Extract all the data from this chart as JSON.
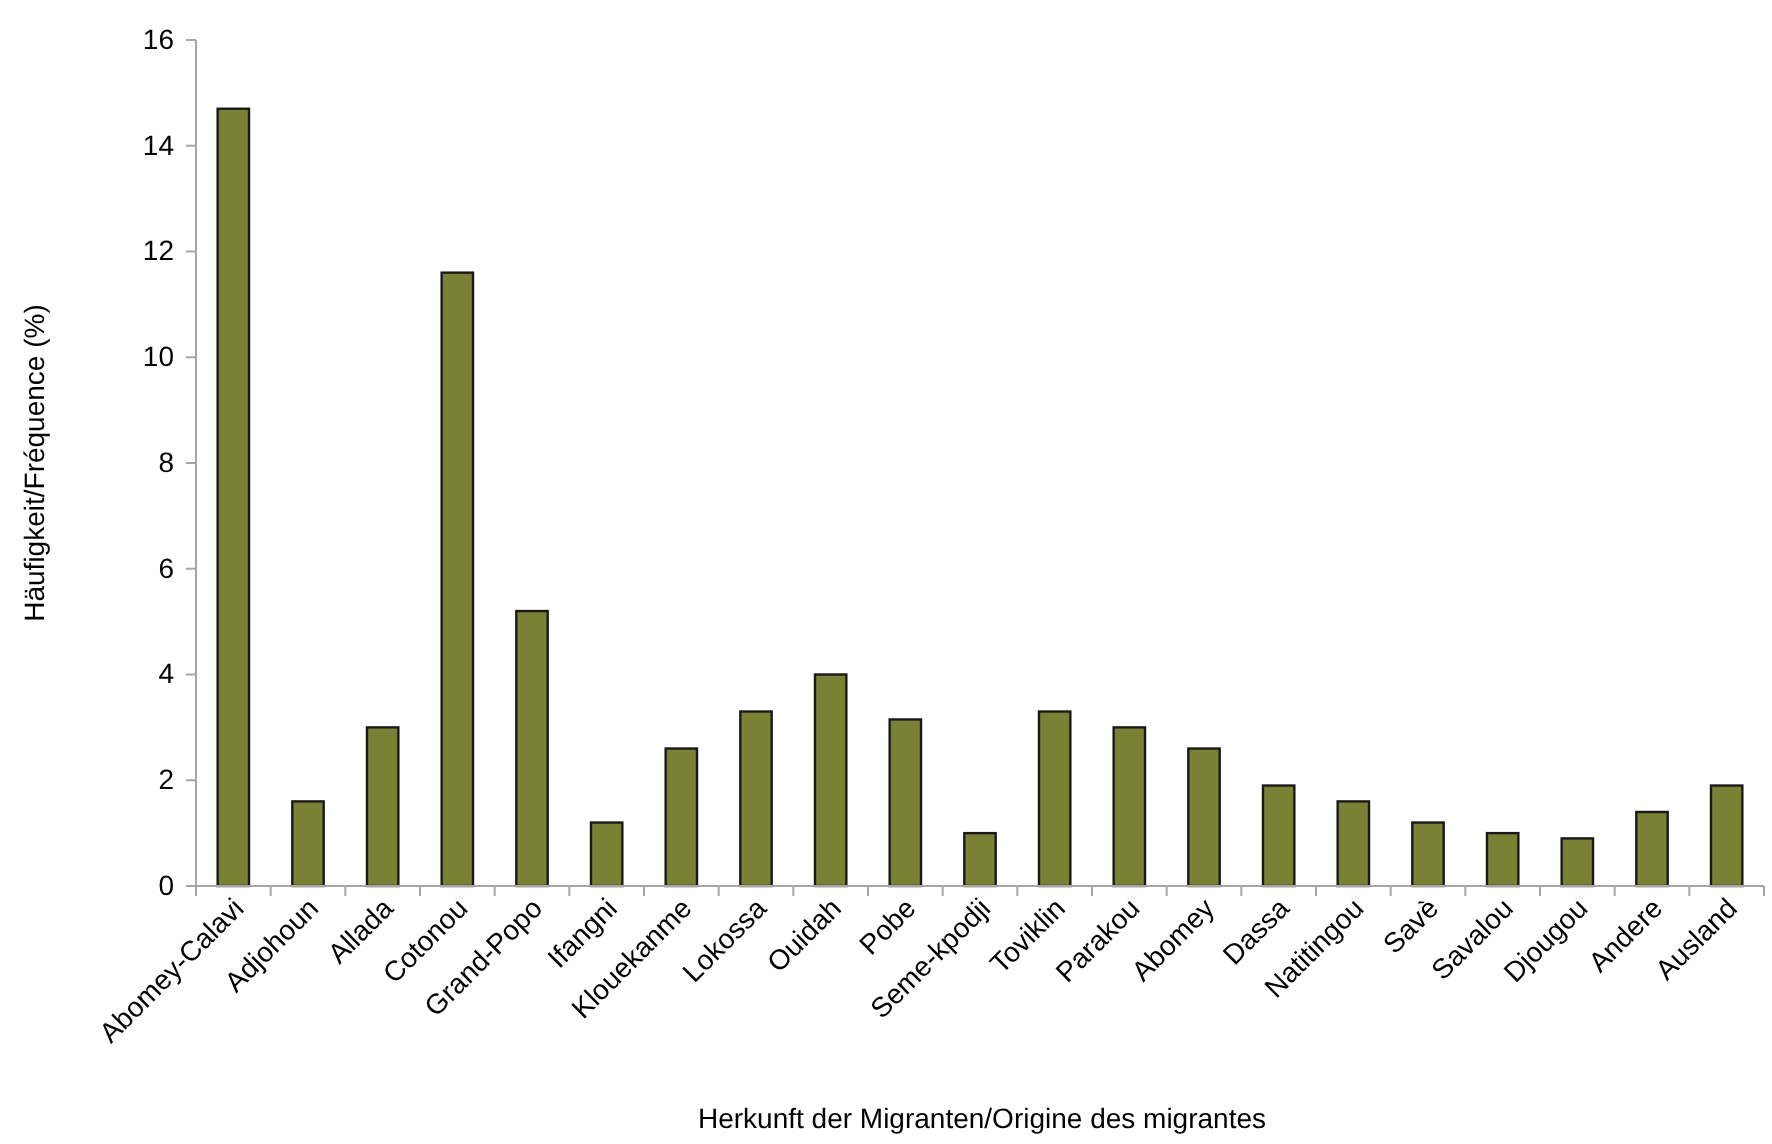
{
  "chart_data": {
    "type": "bar",
    "xlabel": "Herkunft der Migranten/Origine des migrantes",
    "ylabel": "Häufigkeit/Fréquence (%)",
    "categories": [
      "Abomey-Calavi",
      "Adjohoun",
      "Allada",
      "Cotonou",
      "Grand-Popo",
      "Ifangni",
      "Klouekanme",
      "Lokossa",
      "Ouidah",
      "Pobe",
      "Seme-kpodji",
      "Toviklin",
      "Parakou",
      "Abomey",
      "Dassa",
      "Natitingou",
      "Savè",
      "Savalou",
      "Djougou",
      "Andere",
      "Ausland"
    ],
    "values": [
      14.7,
      1.6,
      3.0,
      11.6,
      5.2,
      1.2,
      2.6,
      3.3,
      4.0,
      3.15,
      1.0,
      3.3,
      3.0,
      2.6,
      1.9,
      1.6,
      1.2,
      1.0,
      0.9,
      1.4,
      1.9
    ],
    "color": "#7a8034",
    "ylim": [
      0,
      16
    ],
    "yticks": [
      0,
      2,
      4,
      6,
      8,
      10,
      12,
      14,
      16
    ]
  }
}
